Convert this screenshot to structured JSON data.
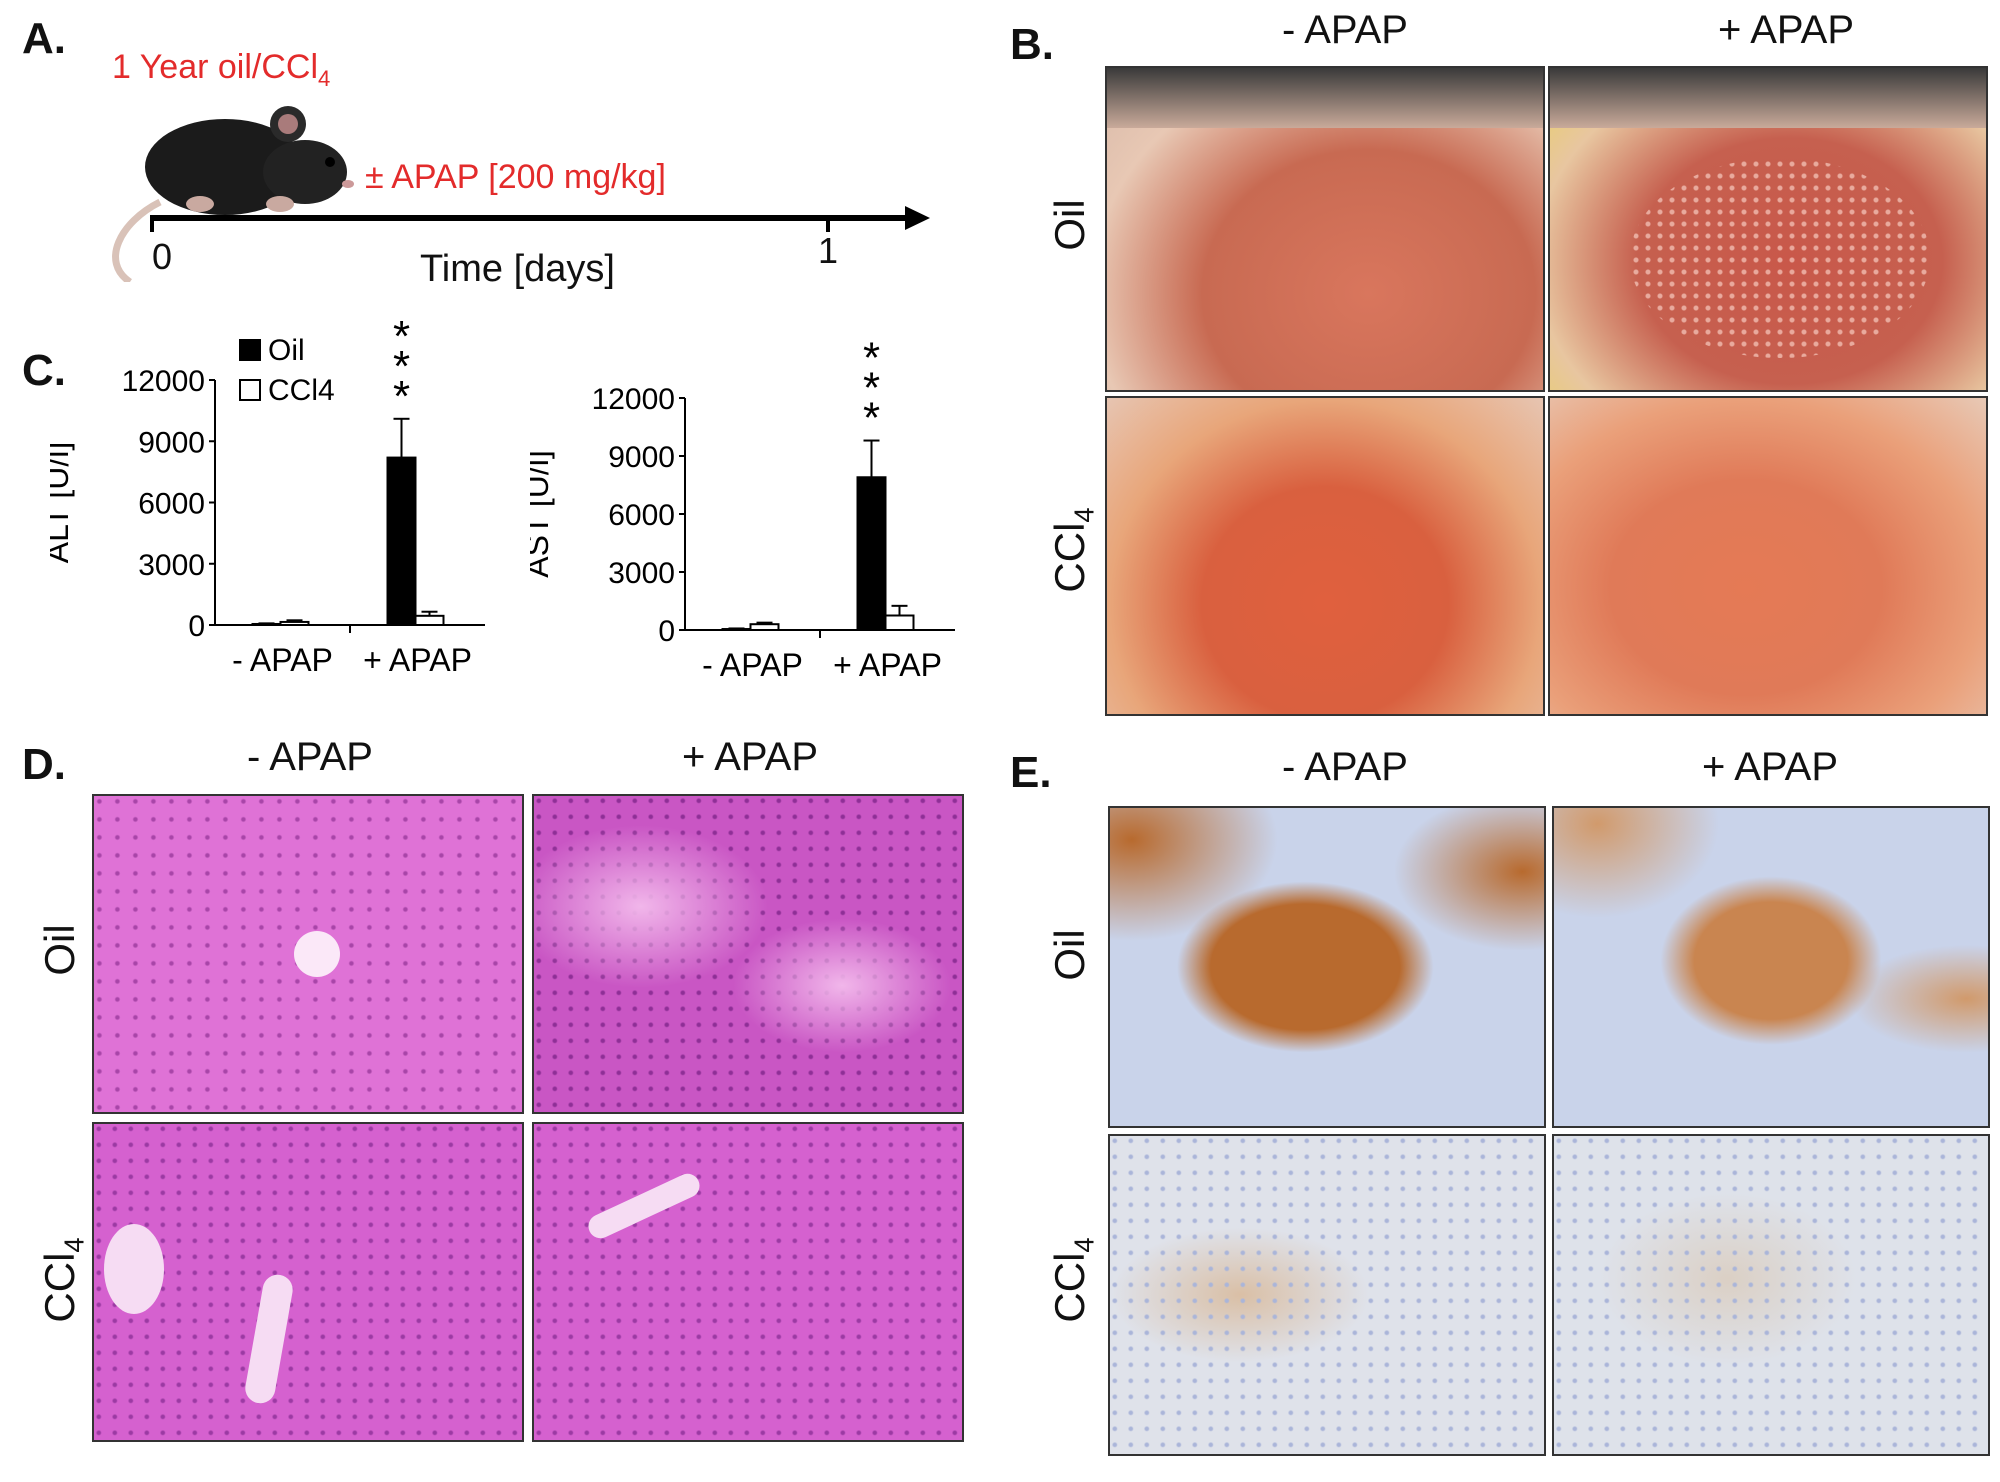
{
  "panels": {
    "a": {
      "label": "A.",
      "treatment": "1 Year oil/CCl",
      "treatment_sub": "4",
      "apap": "± APAP [200 mg/kg]",
      "tick0": "0",
      "tick1": "1",
      "axis_label": "Time [days]"
    },
    "b": {
      "label": "B.",
      "col_minus": "- APAP",
      "col_plus": "+ APAP",
      "row_oil": "Oil",
      "row_ccl": "CCl",
      "row_ccl_sub": "4"
    },
    "c": {
      "label": "C."
    },
    "d": {
      "label": "D.",
      "col_minus": "- APAP",
      "col_plus": "+ APAP",
      "row_oil": "Oil",
      "row_ccl": "CCl",
      "row_ccl_sub": "4"
    },
    "e": {
      "label": "E.",
      "col_minus": "- APAP",
      "col_plus": "+ APAP",
      "row_oil": "Oil",
      "row_ccl": "CCl",
      "row_ccl_sub": "4"
    }
  },
  "chart_data": [
    {
      "type": "bar",
      "ylabel": "ALT [U/l]",
      "categories": [
        "- APAP",
        "+ APAP"
      ],
      "yticks": [
        "0",
        "3000",
        "6000",
        "9000",
        "12000"
      ],
      "ylim": [
        0,
        12000
      ],
      "series": [
        {
          "name": "Oil",
          "values": [
            50,
            8200
          ],
          "errors": [
            30,
            1900
          ],
          "color": "#000000"
        },
        {
          "name": "CCl4",
          "values": [
            150,
            450
          ],
          "errors": [
            80,
            200
          ],
          "color": "#ffffff"
        }
      ],
      "significance": [
        "",
        "***"
      ],
      "legend": "top-left"
    },
    {
      "type": "bar",
      "ylabel": "AST [U/l]",
      "categories": [
        "- APAP",
        "+ APAP"
      ],
      "yticks": [
        "0",
        "3000",
        "6000",
        "9000",
        "12000"
      ],
      "ylim": [
        0,
        12000
      ],
      "series": [
        {
          "name": "Oil",
          "values": [
            50,
            7900
          ],
          "errors": [
            30,
            1900
          ],
          "color": "#000000"
        },
        {
          "name": "CCl4",
          "values": [
            300,
            750
          ],
          "errors": [
            80,
            500
          ],
          "color": "#ffffff"
        }
      ],
      "significance": [
        "",
        "***"
      ]
    }
  ],
  "colors": {
    "accent_red": "#e32b2b",
    "he_stain": "#d45fc0",
    "ihc_brown": "#b86a2e",
    "ihc_blue": "#c9d3ea"
  }
}
